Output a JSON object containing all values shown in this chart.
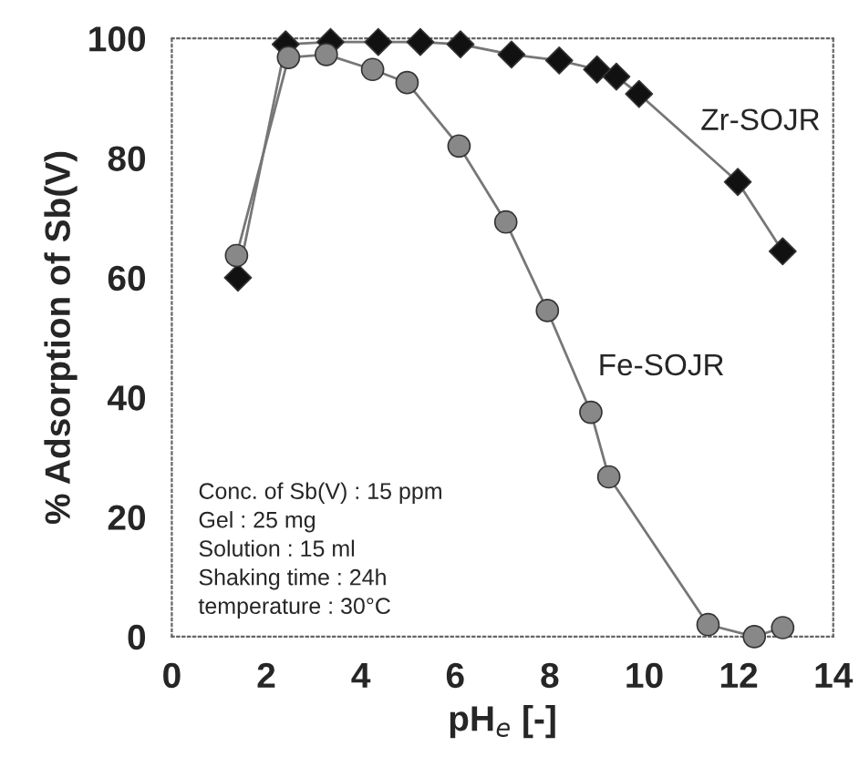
{
  "chart_data": {
    "type": "line",
    "xlabel": "pH$_{e}$ [-]",
    "ylabel": "% Adsorption of Sb(V)",
    "xlim": [
      0,
      14
    ],
    "ylim": [
      0,
      100
    ],
    "xticks": [
      0,
      2,
      4,
      6,
      8,
      10,
      12,
      14
    ],
    "yticks": [
      0,
      20,
      40,
      60,
      80,
      100
    ],
    "grid": false,
    "legend": false,
    "line_style": "solid",
    "series": [
      {
        "color": "#111111",
        "marker": "diamond",
        "x": [
          1.4,
          2.41,
          3.36,
          4.37,
          5.26,
          6.11,
          7.19,
          8.2,
          9.0,
          9.41,
          9.89,
          11.98,
          12.93
        ],
        "values": [
          60,
          99,
          99.4,
          99.4,
          99.4,
          99,
          97.3,
          96.3,
          94.8,
          93.6,
          90.7,
          76,
          64.4
        ]
      },
      {
        "color": "#888888",
        "marker": "circle",
        "x": [
          1.37,
          2.47,
          3.27,
          4.25,
          4.98,
          6.08,
          7.07,
          7.95,
          8.87,
          9.25,
          11.35,
          12.33,
          12.93
        ],
        "values": [
          63.7,
          96.8,
          97.3,
          94.8,
          92.6,
          82,
          69.3,
          54.5,
          37.5,
          26.7,
          2,
          0,
          1.5
        ]
      }
    ],
    "annotations": [
      "Zr-SOJR",
      "Fe-SOJR",
      "Conc. of Sb(V) : 15 ppm",
      "Gel : 25 mg",
      "Solution : 15 ml",
      "Shaking time : 24h",
      "temperature : 30°C"
    ]
  }
}
